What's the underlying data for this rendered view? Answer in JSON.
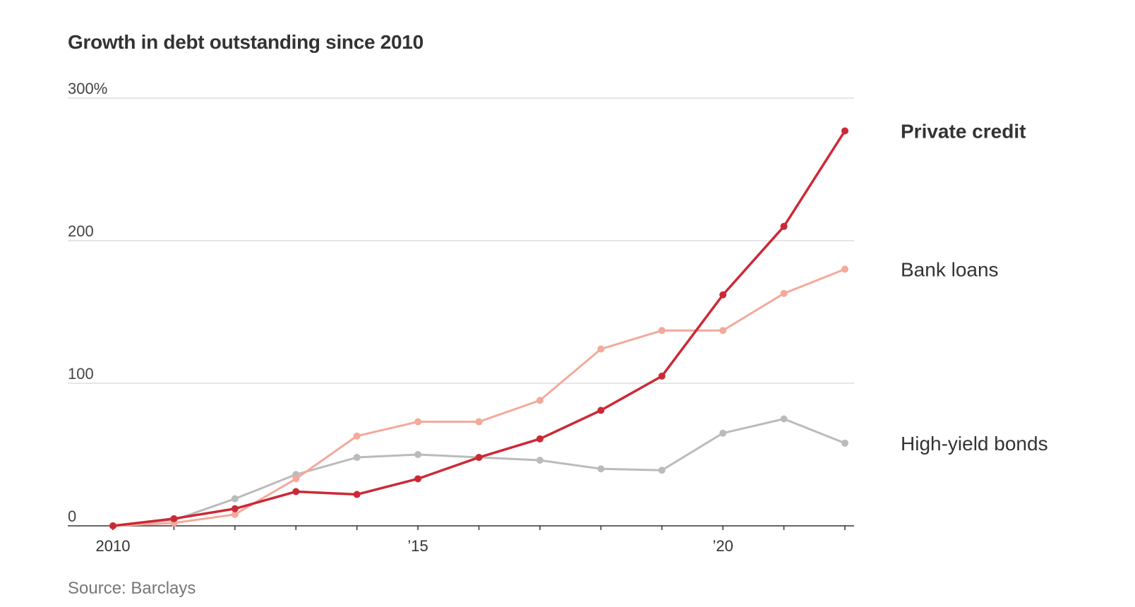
{
  "chart_data": {
    "type": "line",
    "title": "Growth in debt outstanding since 2010",
    "source": "Source: Barclays",
    "x": [
      2010,
      2011,
      2012,
      2013,
      2014,
      2015,
      2016,
      2017,
      2018,
      2019,
      2020,
      2021,
      2022
    ],
    "ylim": [
      0,
      300
    ],
    "yticks": [
      {
        "value": 300,
        "label": "300%"
      },
      {
        "value": 200,
        "label": "200"
      },
      {
        "value": 100,
        "label": "100"
      },
      {
        "value": 0,
        "label": "0"
      }
    ],
    "xticks": [
      {
        "value": 2010,
        "label": "2010"
      },
      {
        "value": 2015,
        "label": "’15"
      },
      {
        "value": 2020,
        "label": "’20"
      }
    ],
    "grid": true,
    "series": [
      {
        "name": "High-yield bonds",
        "color": "#bbbbbb",
        "bold": false,
        "values": [
          0,
          4,
          19,
          36,
          48,
          50,
          48,
          46,
          40,
          39,
          65,
          75,
          58
        ]
      },
      {
        "name": "Bank loans",
        "color": "#f4a99a",
        "bold": false,
        "values": [
          0,
          2,
          8,
          33,
          63,
          73,
          73,
          88,
          124,
          137,
          137,
          163,
          180
        ]
      },
      {
        "name": "Private credit",
        "color": "#cc2936",
        "bold": true,
        "values": [
          0,
          5,
          12,
          24,
          22,
          33,
          48,
          61,
          81,
          105,
          162,
          210,
          277
        ]
      }
    ]
  }
}
